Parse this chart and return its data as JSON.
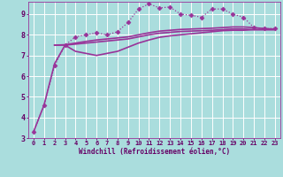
{
  "bg_color": "#aadddd",
  "grid_color": "#cceeee",
  "line_color": "#993399",
  "marker_color": "#993399",
  "xlabel": "Windchill (Refroidissement éolien,°C)",
  "xlabel_color": "#660066",
  "tick_color": "#660066",
  "xlim": [
    -0.5,
    23.5
  ],
  "ylim": [
    3,
    9.6
  ],
  "yticks": [
    3,
    4,
    5,
    6,
    7,
    8,
    9
  ],
  "xticks": [
    0,
    1,
    2,
    3,
    4,
    5,
    6,
    7,
    8,
    9,
    10,
    11,
    12,
    13,
    14,
    15,
    16,
    17,
    18,
    19,
    20,
    21,
    22,
    23
  ],
  "series": [
    {
      "x": [
        0,
        1,
        2,
        3,
        4,
        5,
        6,
        7,
        8,
        9,
        10,
        11,
        12,
        13,
        14,
        15,
        16,
        17,
        18,
        19,
        20,
        21,
        22,
        23
      ],
      "y": [
        3.3,
        4.6,
        6.5,
        7.5,
        7.9,
        8.0,
        8.1,
        8.0,
        8.15,
        8.6,
        9.25,
        9.5,
        9.3,
        9.35,
        9.0,
        8.95,
        8.85,
        9.25,
        9.25,
        9.0,
        8.85,
        8.35,
        8.3,
        8.3
      ],
      "marker": "D",
      "markersize": 2.5,
      "linewidth": 0.9,
      "linestyle": ":"
    },
    {
      "x": [
        0,
        1,
        2,
        3,
        4,
        5,
        6,
        7,
        8,
        9,
        10,
        11,
        12,
        13,
        14,
        15,
        16,
        17,
        18,
        19,
        20,
        21,
        22,
        23
      ],
      "y": [
        3.3,
        4.6,
        6.6,
        7.5,
        7.2,
        7.1,
        7.0,
        7.1,
        7.2,
        7.4,
        7.6,
        7.75,
        7.88,
        7.95,
        8.0,
        8.05,
        8.1,
        8.15,
        8.2,
        8.22,
        8.22,
        8.25,
        8.25,
        8.25
      ],
      "marker": null,
      "markersize": 0,
      "linewidth": 1.2,
      "linestyle": "-"
    },
    {
      "x": [
        2,
        3,
        4,
        5,
        6,
        7,
        8,
        9,
        10,
        11,
        12,
        13,
        14,
        15,
        16,
        17,
        18,
        19,
        20,
        21,
        22,
        23
      ],
      "y": [
        7.5,
        7.5,
        7.55,
        7.6,
        7.65,
        7.7,
        7.75,
        7.8,
        7.9,
        8.0,
        8.08,
        8.12,
        8.16,
        8.18,
        8.2,
        8.22,
        8.25,
        8.28,
        8.28,
        8.25,
        8.25,
        8.25
      ],
      "marker": null,
      "markersize": 0,
      "linewidth": 1.2,
      "linestyle": "-"
    },
    {
      "x": [
        2,
        3,
        4,
        5,
        6,
        7,
        8,
        9,
        10,
        11,
        12,
        13,
        14,
        15,
        16,
        17,
        18,
        19,
        20,
        21,
        22,
        23
      ],
      "y": [
        7.5,
        7.52,
        7.6,
        7.68,
        7.75,
        7.8,
        7.85,
        7.9,
        8.0,
        8.1,
        8.18,
        8.22,
        8.26,
        8.28,
        8.3,
        8.32,
        8.35,
        8.38,
        8.38,
        8.35,
        8.3,
        8.28
      ],
      "marker": null,
      "markersize": 0,
      "linewidth": 1.2,
      "linestyle": "-"
    }
  ]
}
